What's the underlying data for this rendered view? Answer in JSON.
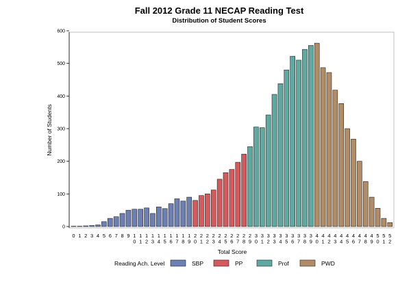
{
  "chart_data": {
    "type": "bar",
    "title": "Fall 2012 Grade 11 NECAP Reading Test",
    "subtitle": "Distribution of Student Scores",
    "xlabel": "Total Score",
    "ylabel": "Number of Students",
    "ylim": [
      0,
      600
    ],
    "yticks": [
      0,
      100,
      200,
      300,
      400,
      500,
      600
    ],
    "grid": false,
    "legend_title": "Reading Ach. Level",
    "legend_position": "bottom",
    "categories": [
      "0",
      "1",
      "2",
      "3",
      "4",
      "5",
      "6",
      "7",
      "8",
      "9",
      "10",
      "11",
      "12",
      "13",
      "14",
      "15",
      "16",
      "17",
      "18",
      "19",
      "20",
      "21",
      "22",
      "23",
      "24",
      "25",
      "26",
      "27",
      "28",
      "29",
      "30",
      "31",
      "32",
      "33",
      "34",
      "35",
      "36",
      "37",
      "38",
      "39",
      "40",
      "41",
      "42",
      "43",
      "44",
      "45",
      "46",
      "47",
      "48",
      "49",
      "50",
      "51",
      "52"
    ],
    "values": [
      1,
      1,
      2,
      3,
      5,
      15,
      25,
      30,
      40,
      50,
      53,
      53,
      57,
      40,
      60,
      55,
      70,
      85,
      78,
      90,
      80,
      95,
      100,
      112,
      145,
      165,
      175,
      197,
      222,
      245,
      305,
      303,
      342,
      405,
      438,
      480,
      522,
      510,
      543,
      555,
      562,
      487,
      472,
      418,
      377,
      300,
      268,
      200,
      138,
      90,
      56,
      25,
      12
    ],
    "level_ranges": [
      {
        "level": "SBP",
        "start": 0,
        "end": 19
      },
      {
        "level": "PP",
        "start": 20,
        "end": 28
      },
      {
        "level": "Prof",
        "start": 29,
        "end": 39
      },
      {
        "level": "PWD",
        "start": 40,
        "end": 52
      }
    ],
    "legend": [
      {
        "name": "SBP",
        "color": "#6d7fb3"
      },
      {
        "name": "PP",
        "color": "#d45a5e"
      },
      {
        "name": "Prof",
        "color": "#5fa9a0"
      },
      {
        "name": "PWD",
        "color": "#b08d67"
      }
    ]
  }
}
